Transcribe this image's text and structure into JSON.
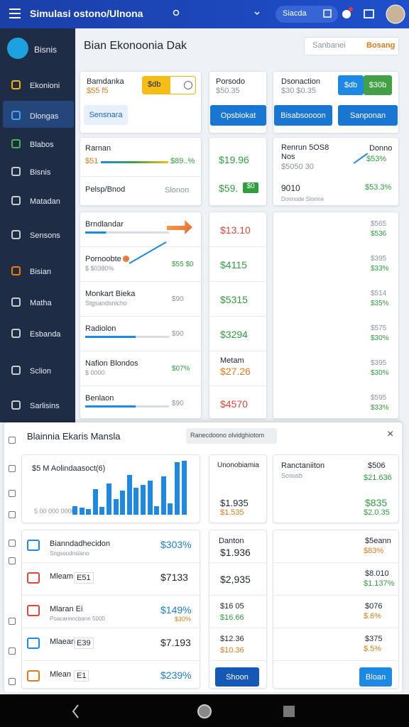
{
  "topbar": {
    "title": "Simulasi ostono/Ulnona",
    "search": "Siacda"
  },
  "sidebar": {
    "brand": "Bisnis",
    "items": [
      "Ekonioni",
      "Dlongas",
      "Blabos",
      "Bisnis",
      "Matadan",
      "Sensons",
      "Bisian",
      "Matha",
      "Esbanda",
      "Sclion",
      "Sarlisins"
    ]
  },
  "header": {
    "title": "Bian Ekonoonia Dak",
    "search": "Sanbanei",
    "button": "Bosang"
  },
  "cards": {
    "a1": {
      "title": "Bamdanka",
      "sub": "$55 f5",
      "toggle": "$db",
      "button": "Sensnara"
    },
    "a2": {
      "title": "Porsodo",
      "sub": "$50.35",
      "button": "Opsbiokat"
    },
    "a3": {
      "title": "Dsonaction",
      "sub": "$30 $0.35",
      "toggle_on": "$db",
      "toggle_off": "$30b",
      "buttons": [
        "Bisabsoooon",
        "Sanponan"
      ]
    },
    "b1": {
      "title": "Rarnan",
      "bar_label": "$51",
      "bar_value": "$89..%",
      "row": "Pelsp/Bnod",
      "row_value": "Slonon"
    },
    "b2": {
      "value": "$19.96",
      "value2": "$59.",
      "badge": "$0"
    },
    "b3": {
      "title": "Renrun 5OS8",
      "subtitle": "Nos",
      "sub": "$5050 30",
      "trend_label": "Donno",
      "trend_value": "$53%",
      "row": "9010",
      "row_sub": "Donnode Stonne",
      "row_value": "$53.3%"
    }
  },
  "table": {
    "rows": [
      {
        "name": "Brndlandar",
        "value": "$13.10",
        "right": [
          "$565",
          "$536"
        ]
      },
      {
        "name": "Pornoobte",
        "sub": "$ $0380%",
        "aside": "$55 $0",
        "value": "$4115",
        "right": [
          "$395",
          "$33%"
        ]
      },
      {
        "name": "Monkart Bieka",
        "sub": "Stgsandsnicho",
        "aside": "$90",
        "value": "$5315",
        "right": [
          "$514",
          "$35%"
        ]
      },
      {
        "name": "Radiolon",
        "aside": "$90",
        "value": "$3294",
        "right": [
          "$575",
          "$30%"
        ]
      },
      {
        "name": "Nafion Blondos",
        "sub": "$ 0000",
        "aside": "$07%",
        "value_label": "Metam",
        "value": "$27.26",
        "right": [
          "$395",
          "$30%"
        ]
      },
      {
        "name": "Benlaon",
        "aside": "$90",
        "value": "$4570",
        "right": [
          "$595",
          "$33%"
        ]
      }
    ]
  },
  "panel": {
    "title": "Blainnia Ekaris Mansla",
    "chip": "Ranecdoono olvidghiotom",
    "chart": {
      "label": "$5 M Aolindaasoct(6)",
      "axis": "5 00 000 0000",
      "bars": [
        15,
        12,
        10,
        45,
        14,
        55,
        28,
        42,
        70,
        48,
        52,
        60,
        15,
        68,
        20,
        92,
        95
      ]
    },
    "c2": {
      "title": "Unonobiamia",
      "values": [
        "$1.935",
        "$1.535"
      ]
    },
    "c3": {
      "title": "Ranctaniiton",
      "sub": "Sosusb",
      "side": "$506",
      "side2": "$21.636",
      "values": [
        "$835",
        "$2.0.35"
      ]
    },
    "list": [
      {
        "name": "Bianndadhecidon",
        "sub": "Sngsoudnstano",
        "value": "$303%"
      },
      {
        "name": "Mleam",
        "tag": "E51",
        "value": "$7133"
      },
      {
        "name": "Mlaran Ei",
        "sub": "Poacannncbann 5000",
        "value": "$149%",
        "value2": "$30%"
      },
      {
        "name": "Mlaean",
        "tag": "E39",
        "value": "$7.193"
      },
      {
        "name": "Mlean",
        "tag": "E1",
        "value": "$239%"
      }
    ],
    "mid": [
      {
        "title": "Danton",
        "value": "$1.936"
      },
      {
        "value": "$2,935"
      },
      {
        "value": "$16 05",
        "value2": "$16.66"
      },
      {
        "value": "$12.36",
        "value2": "$10.36"
      }
    ],
    "mid_button": "Shoon",
    "right": [
      {
        "value": "$5eann",
        "value2": "$83%"
      },
      {
        "value": "$8.010",
        "value2": "$1.137%"
      },
      {
        "value": "$076",
        "value2": "$.6%"
      },
      {
        "value": "$375",
        "value2": "$.5%"
      }
    ],
    "right_button": "Bloan"
  }
}
